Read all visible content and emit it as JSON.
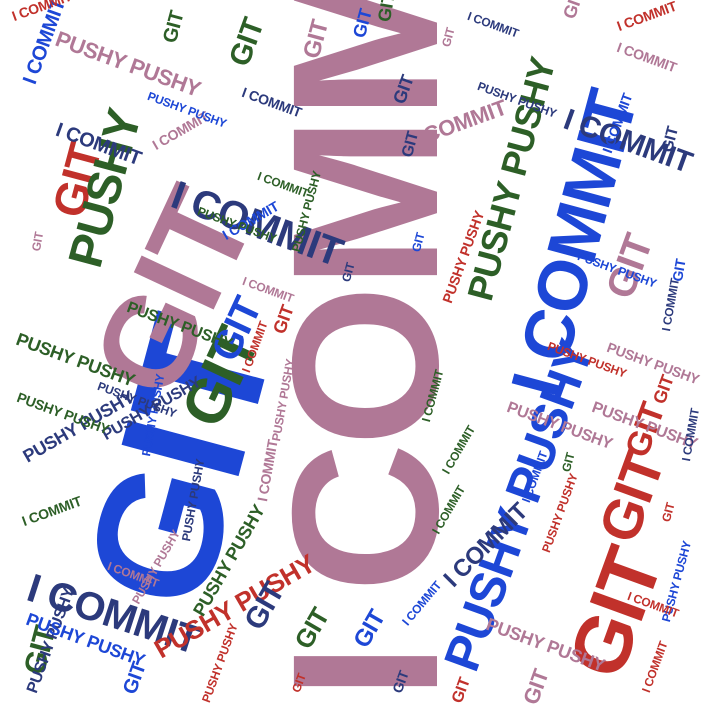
{
  "words": [
    {
      "text": "I COMMIT",
      "color": "#b07896"
    },
    {
      "text": "GIT",
      "color": "#1d47d6"
    },
    {
      "text": "GIT",
      "color": "#b07896"
    },
    {
      "text": "I COMMIT",
      "color": "#1d47d6"
    },
    {
      "text": "PUSHY PUSHY",
      "color": "#2d5f27"
    },
    {
      "text": "I COMMIT",
      "color": "#b07896"
    },
    {
      "text": "GIT",
      "color": "#2d5f27"
    },
    {
      "text": "GIT",
      "color": "#c1312b"
    },
    {
      "text": "PUSHY PUSHY",
      "color": "#1d47d6"
    },
    {
      "text": "I COMMIT",
      "color": "#2c3a7c"
    },
    {
      "text": "GIT",
      "color": "#c1312b"
    },
    {
      "text": "PUSHY",
      "color": "#2d5f27"
    },
    {
      "text": "I COMMIT",
      "color": "#2c3a7c"
    },
    {
      "text": "GIT",
      "color": "#c1312b"
    },
    {
      "text": "PUSHY PUSHY",
      "color": "#c1312b"
    },
    {
      "text": "GIT",
      "color": "#1d47d6"
    },
    {
      "text": "I COMMIT",
      "color": "#2c3a7c"
    },
    {
      "text": "PUSHY PUSHY",
      "color": "#2d5f27"
    },
    {
      "text": "GIT",
      "color": "#b07896"
    },
    {
      "text": "PUSHY PUSHY",
      "color": "#b07896"
    },
    {
      "text": "I COMMIT",
      "color": "#2c3a7c"
    },
    {
      "text": "GIT",
      "color": "#2d5f27"
    },
    {
      "text": "PUSHY PUSHY",
      "color": "#2c3a7c"
    },
    {
      "text": "I COMMIT",
      "color": "#1d47d6"
    },
    {
      "text": "GIT",
      "color": "#c1312b"
    },
    {
      "text": "PUSHY PUSHY",
      "color": "#2d5f27"
    },
    {
      "text": "I COMMIT",
      "color": "#b07896"
    },
    {
      "text": "GIT",
      "color": "#2c3a7c"
    },
    {
      "text": "PUSHY PUSHY",
      "color": "#b07896"
    },
    {
      "text": "I COMMIT",
      "color": "#c1312b"
    },
    {
      "text": "GIT",
      "color": "#1d47d6"
    },
    {
      "text": "PUSHY PUSHY",
      "color": "#2c3a7c"
    },
    {
      "text": "GIT",
      "color": "#2d5f27"
    },
    {
      "text": "I COMMIT",
      "color": "#2c3a7c"
    },
    {
      "text": "GIT",
      "color": "#b07896"
    },
    {
      "text": "PUSHY PUSHY",
      "color": "#1d47d6"
    },
    {
      "text": "I COMMIT",
      "color": "#2d5f27"
    },
    {
      "text": "GIT",
      "color": "#c1312b"
    },
    {
      "text": "PUSHY PUSHY",
      "color": "#b07896"
    },
    {
      "text": "I COMMIT",
      "color": "#1d47d6"
    },
    {
      "text": "GIT",
      "color": "#2c3a7c"
    },
    {
      "text": "PUSHY PUSHY",
      "color": "#2d5f27"
    },
    {
      "text": "I COMMIT",
      "color": "#c1312b"
    },
    {
      "text": "GIT",
      "color": "#1d47d6"
    },
    {
      "text": "PUSHY PUSHY",
      "color": "#2c3a7c"
    },
    {
      "text": "I COMMIT",
      "color": "#b07896"
    },
    {
      "text": "GIT",
      "color": "#2d5f27"
    },
    {
      "text": "PUSHY PUSHY",
      "color": "#c1312b"
    },
    {
      "text": "I COMMIT",
      "color": "#2c3a7c"
    },
    {
      "text": "GIT",
      "color": "#b07896"
    },
    {
      "text": "PUSHY PUSHY",
      "color": "#1d47d6"
    },
    {
      "text": "GIT",
      "color": "#c1312b"
    },
    {
      "text": "I COMMIT",
      "color": "#2d5f27"
    },
    {
      "text": "PUSHY PUSHY",
      "color": "#b07896"
    },
    {
      "text": "GIT",
      "color": "#2c3a7c"
    },
    {
      "text": "I COMMIT",
      "color": "#1d47d6"
    },
    {
      "text": "PUSHY PUSHY",
      "color": "#2d5f27"
    },
    {
      "text": "GIT",
      "color": "#b07896"
    },
    {
      "text": "I COMMIT",
      "color": "#c1312b"
    },
    {
      "text": "PUSHY PUSHY",
      "color": "#2c3a7c"
    },
    {
      "text": "GIT",
      "color": "#1d47d6"
    },
    {
      "text": "I COMMIT",
      "color": "#2d5f27"
    },
    {
      "text": "PUSHY PUSHY",
      "color": "#b07896"
    },
    {
      "text": "GIT",
      "color": "#c1312b"
    },
    {
      "text": "I COMMIT",
      "color": "#2c3a7c"
    },
    {
      "text": "PUSHY PUSHY",
      "color": "#1d47d6"
    },
    {
      "text": "GIT",
      "color": "#2d5f27"
    },
    {
      "text": "I COMMIT",
      "color": "#b07896"
    },
    {
      "text": "PUSHY PUSHY",
      "color": "#c1312b"
    },
    {
      "text": "GIT",
      "color": "#2c3a7c"
    },
    {
      "text": "I COMMIT",
      "color": "#1d47d6"
    },
    {
      "text": "PUSHY PUSHY",
      "color": "#2d5f27"
    },
    {
      "text": "GIT",
      "color": "#b07896"
    },
    {
      "text": "I COMMIT",
      "color": "#c1312b"
    },
    {
      "text": "PUSHY PUSHY",
      "color": "#2c3a7c"
    },
    {
      "text": "GIT",
      "color": "#1d47d6"
    },
    {
      "text": "I COMMIT",
      "color": "#2d5f27"
    },
    {
      "text": "PUSHY PUSHY",
      "color": "#b07896"
    },
    {
      "text": "GIT",
      "color": "#c1312b"
    },
    {
      "text": "I COMMIT",
      "color": "#2c3a7c"
    },
    {
      "text": "PUSHY PUSHY",
      "color": "#1d47d6"
    },
    {
      "text": "GIT",
      "color": "#2d5f27"
    },
    {
      "text": "I COMMIT",
      "color": "#b07896"
    },
    {
      "text": "PUSHY PUSHY",
      "color": "#c1312b"
    },
    {
      "text": "GIT",
      "color": "#2c3a7c"
    },
    {
      "text": "I COMMIT",
      "color": "#1d47d6"
    },
    {
      "text": "PUSHY PUSHY",
      "color": "#2d5f27"
    },
    {
      "text": "GIT",
      "color": "#b07896"
    },
    {
      "text": "I COMMIT",
      "color": "#c1312b"
    },
    {
      "text": "PUSHY PUSHY",
      "color": "#2c3a7c"
    },
    {
      "text": "GIT",
      "color": "#1d47d6"
    },
    {
      "text": "I COMMIT",
      "color": "#2d5f27"
    },
    {
      "text": "PUSHY PUSHY",
      "color": "#b07896"
    },
    {
      "text": "GIT",
      "color": "#c1312b"
    },
    {
      "text": "I COMMIT",
      "color": "#2c3a7c"
    },
    {
      "text": "PUSHY PUSHY",
      "color": "#1d47d6"
    },
    {
      "text": "GIT",
      "color": "#2d5f27"
    },
    {
      "text": "I COMMIT",
      "color": "#b07896"
    },
    {
      "text": "PUSHY PUSHY",
      "color": "#c1312b"
    },
    {
      "text": "GIT",
      "color": "#2c3a7c"
    }
  ]
}
